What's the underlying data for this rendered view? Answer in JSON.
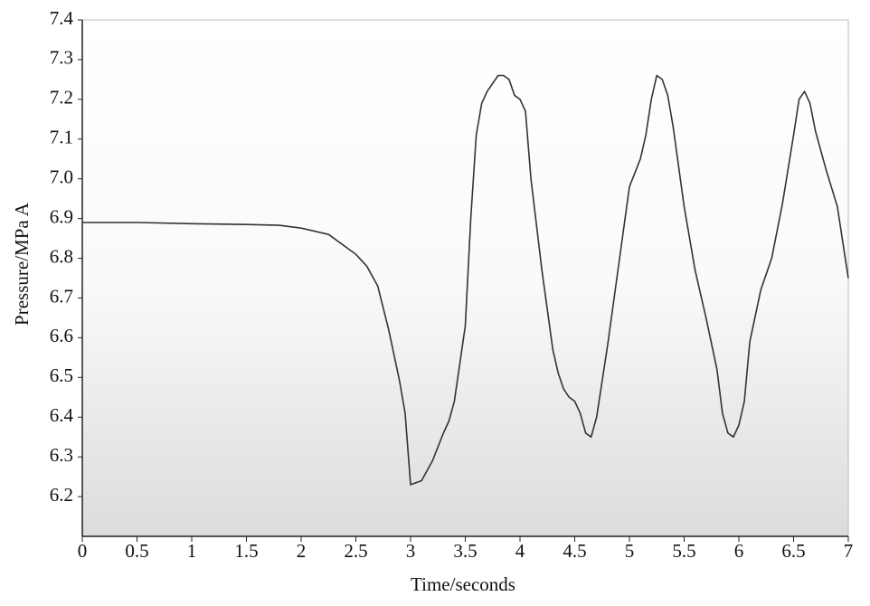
{
  "chart_data": {
    "type": "line",
    "x_label": "Time/seconds",
    "y_label": "Pressure/MPa A",
    "xlim": [
      0,
      7
    ],
    "ylim": [
      6.1,
      7.4
    ],
    "xticks": [
      0,
      0.5,
      1,
      1.5,
      2,
      2.5,
      3,
      3.5,
      4,
      4.5,
      5,
      5.5,
      6,
      6.5,
      7
    ],
    "yticks": [
      6.2,
      6.3,
      6.4,
      6.5,
      6.6,
      6.7,
      6.8,
      6.9,
      {
        "value": 7,
        "label": "7.0"
      },
      7.1,
      7.2,
      7.3,
      7.4
    ],
    "color": "#333333",
    "x": [
      0,
      0.5,
      1,
      1.5,
      1.8,
      2,
      2.25,
      2.5,
      2.6,
      2.7,
      2.8,
      2.9,
      2.95,
      3,
      3.1,
      3.2,
      3.3,
      3.35,
      3.4,
      3.5,
      3.55,
      3.6,
      3.65,
      3.7,
      3.8,
      3.85,
      3.9,
      3.95,
      4,
      4.05,
      4.1,
      4.2,
      4.3,
      4.35,
      4.4,
      4.45,
      4.5,
      4.55,
      4.6,
      4.65,
      4.7,
      4.8,
      4.9,
      5,
      5.1,
      5.15,
      5.2,
      5.25,
      5.3,
      5.35,
      5.4,
      5.5,
      5.6,
      5.7,
      5.8,
      5.85,
      5.9,
      5.95,
      6,
      6.05,
      6.1,
      6.2,
      6.3,
      6.4,
      6.5,
      6.55,
      6.6,
      6.65,
      6.7,
      6.8,
      6.9,
      7
    ],
    "values": [
      6.89,
      6.89,
      6.887,
      6.885,
      6.883,
      6.876,
      6.86,
      6.81,
      6.78,
      6.73,
      6.62,
      6.49,
      6.41,
      6.23,
      6.24,
      6.29,
      6.36,
      6.39,
      6.44,
      6.63,
      6.9,
      7.11,
      7.19,
      7.22,
      7.26,
      7.26,
      7.25,
      7.21,
      7.2,
      7.17,
      7.0,
      6.77,
      6.57,
      6.51,
      6.47,
      6.45,
      6.44,
      6.41,
      6.36,
      6.35,
      6.4,
      6.58,
      6.78,
      6.98,
      7.05,
      7.11,
      7.2,
      7.26,
      7.25,
      7.21,
      7.13,
      6.93,
      6.77,
      6.65,
      6.52,
      6.41,
      6.36,
      6.35,
      6.38,
      6.44,
      6.59,
      6.72,
      6.8,
      6.94,
      7.11,
      7.2,
      7.22,
      7.19,
      7.12,
      7.02,
      6.93,
      6.75
    ]
  }
}
